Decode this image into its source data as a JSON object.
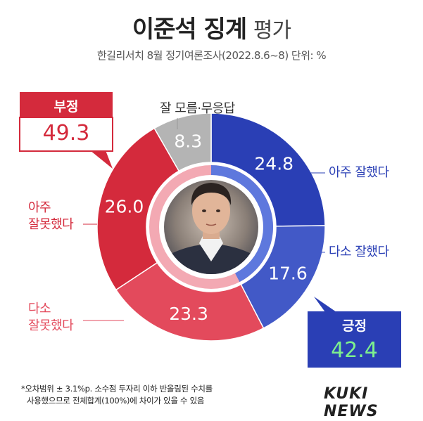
{
  "title": {
    "main": "이준석 징계",
    "sub": "평가"
  },
  "subtitle": "한길리서치 8월 정기여론조사(2022.8.6~8) 단위: %",
  "callouts": {
    "negative": {
      "label": "부정",
      "value": "49.3",
      "color": "#d42a3c"
    },
    "positive": {
      "label": "긍정",
      "value": "42.4",
      "color": "#2a44b4"
    }
  },
  "segment_labels": {
    "dont_know": "잘 모름·무응답",
    "very_good": "아주 잘했다",
    "somewhat_good": "다소 잘했다",
    "somewhat_bad_1": "다소",
    "somewhat_bad_2": "잘못했다",
    "very_bad_1": "아주",
    "very_bad_2": "잘못했다"
  },
  "colors": {
    "very_good": "#2a3fb5",
    "somewhat_good": "#4259c7",
    "somewhat_bad": "#e34a5c",
    "very_bad": "#d42a3c",
    "dont_know": "#b4b4b4",
    "positive_value": "#7df08e",
    "negative_value": "#ffd88a"
  },
  "chart_data": {
    "type": "pie",
    "variant": "donut",
    "categories": [
      "아주 잘했다",
      "다소 잘했다",
      "다소 잘못했다",
      "아주 잘못했다",
      "잘 모름·무응답"
    ],
    "values": [
      24.8,
      17.6,
      23.3,
      26.0,
      8.3
    ],
    "value_labels": [
      "24.8",
      "17.6",
      "23.3",
      "26.0",
      "8.3"
    ],
    "groups": [
      {
        "name": "긍정",
        "value": 42.4
      },
      {
        "name": "부정",
        "value": 49.3
      }
    ]
  },
  "footnote": {
    "line1": "*오차범위 ± 3.1%p. 소수점 두자리 이하 반올림된 수치를",
    "line2": "사용했으므로 전체합계(100%)에 차이가 있을 수 있음"
  },
  "logo": "KUKI NEWS"
}
